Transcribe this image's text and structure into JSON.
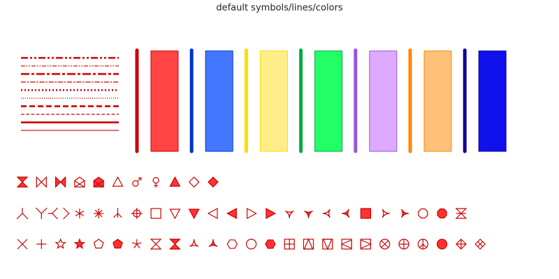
{
  "chart_data": {
    "type": "other",
    "title": "default symbols/lines/colors",
    "line_styles": [
      {
        "name": "dash-dot-dot",
        "color": "#cc0000",
        "thick": true
      },
      {
        "name": "dash-dot-dot",
        "color": "#cc0000",
        "thick": false
      },
      {
        "name": "dash-dot",
        "color": "#cc0000",
        "thick": true
      },
      {
        "name": "dash-dot",
        "color": "#cc0000",
        "thick": false
      },
      {
        "name": "dot",
        "color": "#cc0000",
        "thick": true
      },
      {
        "name": "dot",
        "color": "#cc0000",
        "thick": false
      },
      {
        "name": "dash",
        "color": "#cc0000",
        "thick": true
      },
      {
        "name": "dash",
        "color": "#cc0000",
        "thick": false
      },
      {
        "name": "solid",
        "color": "#cc0000",
        "thick": true
      },
      {
        "name": "solid",
        "color": "#cc0000",
        "thick": false
      }
    ],
    "colors": [
      {
        "line": "#cc0000",
        "fill": "#ff4444",
        "stroke": "#cc0000"
      },
      {
        "line": "#0033cc",
        "fill": "#4477ff",
        "stroke": "#0033cc"
      },
      {
        "line": "#ffdd00",
        "fill": "#ffee88",
        "stroke": "#ffdd00"
      },
      {
        "line": "#00aa44",
        "fill": "#22ff66",
        "stroke": "#00aa44"
      },
      {
        "line": "#9955dd",
        "fill": "#ddaaff",
        "stroke": "#9955dd"
      },
      {
        "line": "#ff8800",
        "fill": "#ffc07a",
        "stroke": "#ff8800"
      },
      {
        "line": "#110099",
        "fill": "#1111ee",
        "stroke": "#110099"
      }
    ],
    "symbol_color": "#cc0000",
    "symbol_fill": "#ff3333",
    "symbol_rows": [
      [
        "hourglass-fill",
        "bowtie",
        "bowtie-fill",
        "envelope",
        "envelope-fill",
        "triangle-up",
        "male",
        "female",
        "triangle-up-fill",
        "diamond",
        "diamond-fill"
      ],
      [
        "tri-down-y",
        "y-up",
        "arrow-spread",
        "asterisk-6",
        "asterisk-8",
        "tri-up-y",
        "circle-cross",
        "square",
        "triangle-down",
        "triangle-down-fill",
        "triangle-left",
        "triangle-left-fill",
        "triangle-right",
        "triangle-right-fill",
        "ninja-down",
        "ninja-down-fill",
        "ninja-left",
        "ninja-left-fill",
        "square-fill",
        "ninja-right",
        "ninja-right-fill",
        "octagon",
        "octagon-fill",
        "hourglass-x"
      ],
      [
        "x",
        "plus",
        "star",
        "star-fill",
        "pentagon",
        "pentagon-fill",
        "asterisk-5",
        "hourglass",
        "hourglass-fill2",
        "ninja-up",
        "ninja-up-fill",
        "hexagon",
        "circle",
        "hexagon-fill",
        "square-plus",
        "square-triangle-up",
        "square-triangle-down",
        "square-triangle-left",
        "square-triangle-right",
        "circle-x",
        "circle-plus",
        "peace",
        "circle-fill",
        "diamond-plus",
        "diamond-x"
      ]
    ]
  }
}
